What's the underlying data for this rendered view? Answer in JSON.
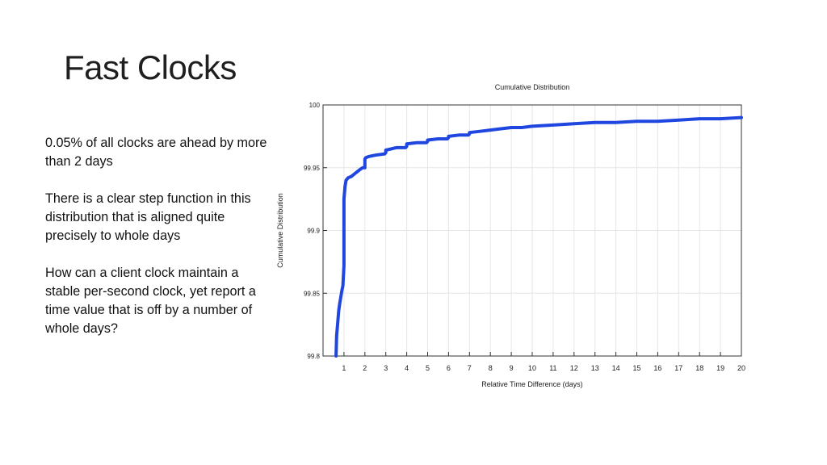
{
  "slide": {
    "title": "Fast Clocks",
    "paragraphs": [
      "0.05% of all clocks are ahead by more than 2 days",
      "There is a clear step function in this distribution that is aligned quite precisely to whole days",
      "How can a client clock maintain a stable per-second clock, yet report a time value that is off by a number of whole days?"
    ]
  },
  "chart_data": {
    "type": "line",
    "title": "Cumulative Distribution",
    "xlabel": "Relative Time Difference (days)",
    "ylabel": "Cumulative Distribution",
    "xlim": [
      0,
      20
    ],
    "ylim": [
      99.8,
      100
    ],
    "x_ticks": [
      1,
      2,
      3,
      4,
      5,
      6,
      7,
      8,
      9,
      10,
      11,
      12,
      13,
      14,
      15,
      16,
      17,
      18,
      19,
      20
    ],
    "y_ticks": [
      99.8,
      99.85,
      99.9,
      99.95,
      100
    ],
    "y_tick_labels": [
      "99.8",
      "99.85",
      "99.9",
      "99.95",
      "100"
    ],
    "grid": true,
    "line_color": "#1f47e0",
    "series": [
      {
        "name": "",
        "x": [
          0.62,
          0.65,
          0.7,
          0.75,
          0.8,
          0.85,
          0.9,
          0.95,
          1.0,
          1.0,
          1.05,
          1.1,
          1.2,
          1.35,
          1.5,
          1.65,
          1.8,
          1.9,
          2.0,
          2.0,
          2.05,
          2.2,
          2.5,
          2.95,
          3.0,
          3.0,
          3.5,
          3.95,
          4.0,
          4.0,
          4.5,
          4.95,
          5.0,
          5.0,
          5.5,
          5.95,
          6.0,
          6.0,
          6.5,
          6.95,
          7.0,
          7.0,
          7.5,
          8.0,
          8.5,
          9.0,
          9.5,
          10.0,
          11.0,
          12.0,
          13.0,
          14.0,
          15.0,
          16.0,
          17.0,
          18.0,
          19.0,
          20.0
        ],
        "y": [
          99.8,
          99.816,
          99.826,
          99.836,
          99.842,
          99.847,
          99.852,
          99.856,
          99.872,
          99.925,
          99.935,
          99.94,
          99.942,
          99.943,
          99.945,
          99.947,
          99.949,
          99.95,
          99.95,
          99.957,
          99.958,
          99.959,
          99.96,
          99.961,
          99.962,
          99.964,
          99.966,
          99.966,
          99.967,
          99.969,
          99.97,
          99.97,
          99.971,
          99.972,
          99.973,
          99.973,
          99.974,
          99.975,
          99.976,
          99.976,
          99.977,
          99.978,
          99.979,
          99.98,
          99.981,
          99.982,
          99.982,
          99.983,
          99.984,
          99.985,
          99.986,
          99.986,
          99.987,
          99.987,
          99.988,
          99.989,
          99.989,
          99.99
        ]
      }
    ]
  }
}
